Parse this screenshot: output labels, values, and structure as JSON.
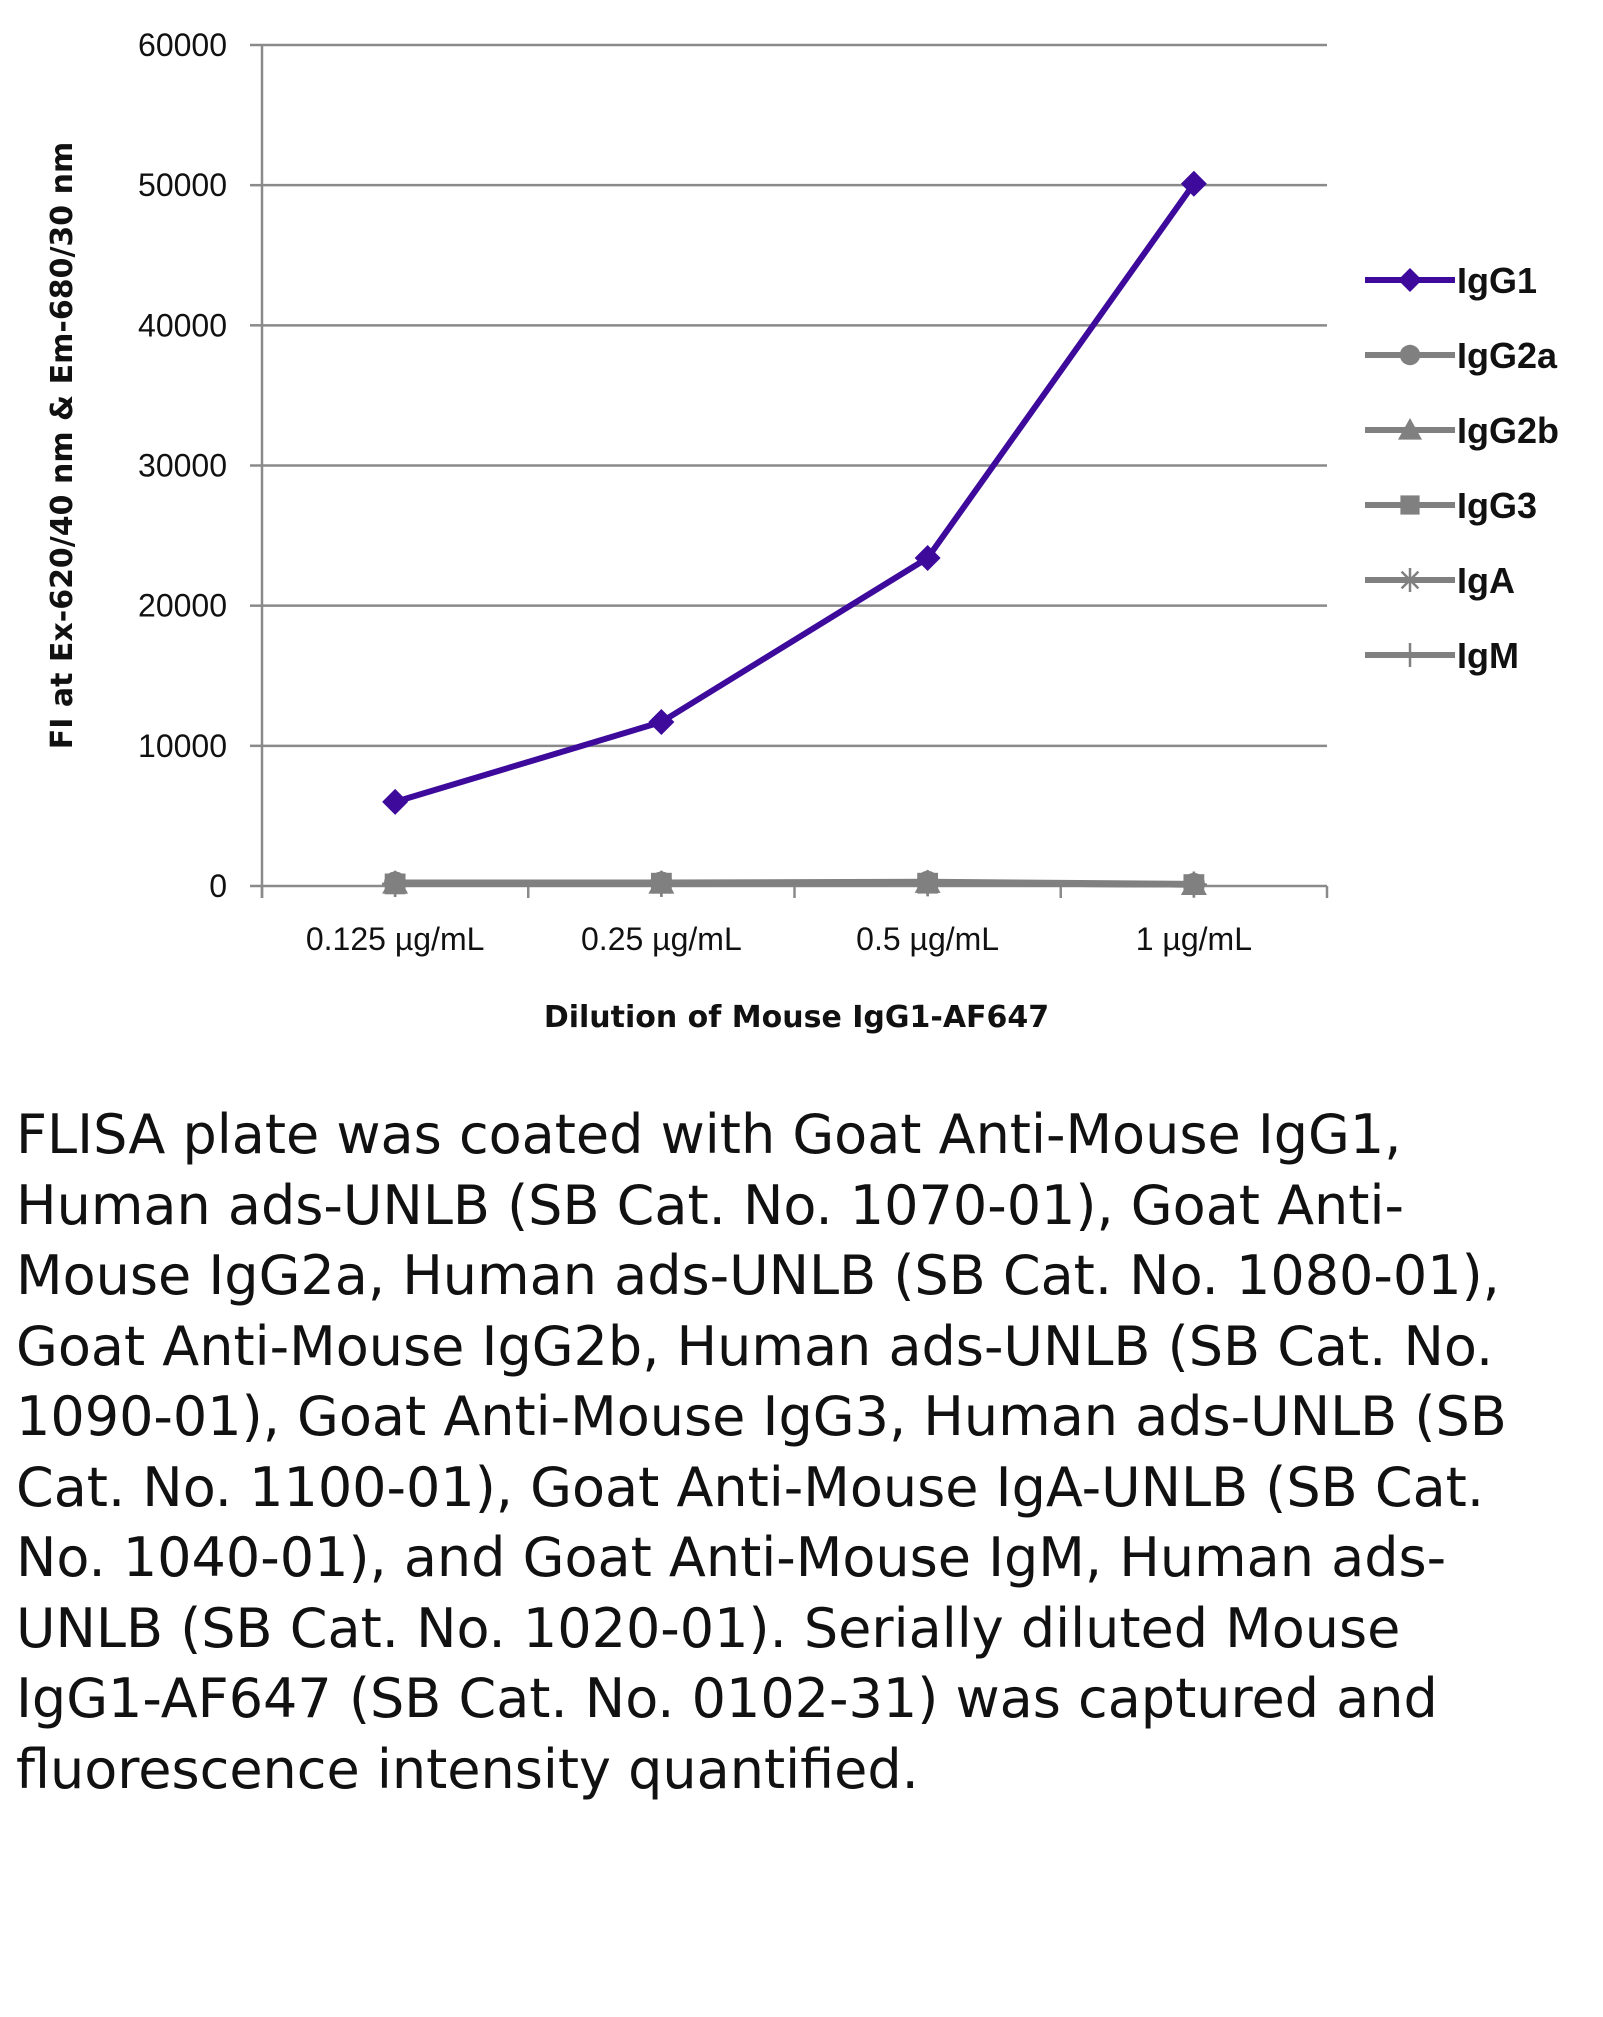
{
  "chart_data": {
    "type": "line",
    "title": "",
    "xlabel": "Dilution of Mouse IgG1-AF647",
    "ylabel": "FI at Ex-620/40 nm & Em-680/30 nm",
    "categories": [
      "0.125 µg/mL",
      "0.25 µg/mL",
      "0.5 µg/mL",
      "1 µg/mL"
    ],
    "ylim": [
      0,
      60000
    ],
    "yticks": [
      0,
      10000,
      20000,
      30000,
      40000,
      50000,
      60000
    ],
    "grid": true,
    "legend_position": "right",
    "series": [
      {
        "name": "IgG1",
        "marker": "diamond",
        "color": "#3d0a9c",
        "values": [
          6000,
          11700,
          23400,
          50100
        ]
      },
      {
        "name": "IgG2a",
        "marker": "circle",
        "color": "#808080",
        "values": [
          250,
          250,
          300,
          150
        ]
      },
      {
        "name": "IgG2b",
        "marker": "triangle",
        "color": "#808080",
        "values": [
          200,
          200,
          250,
          100
        ]
      },
      {
        "name": "IgG3",
        "marker": "square",
        "color": "#808080",
        "values": [
          150,
          200,
          200,
          100
        ]
      },
      {
        "name": "IgA",
        "marker": "asterisk",
        "color": "#808080",
        "values": [
          150,
          150,
          200,
          100
        ]
      },
      {
        "name": "IgM",
        "marker": "plus",
        "color": "#808080",
        "values": [
          150,
          150,
          200,
          100
        ]
      }
    ]
  },
  "caption": "FLISA plate was coated with Goat Anti-Mouse IgG1, Human ads-UNLB (SB Cat. No. 1070-01), Goat Anti-Mouse IgG2a, Human ads-UNLB (SB Cat. No. 1080-01), Goat Anti-Mouse IgG2b, Human ads-UNLB (SB Cat. No. 1090-01), Goat Anti-Mouse IgG3, Human ads-UNLB (SB Cat. No. 1100-01), Goat Anti-Mouse IgA-UNLB (SB Cat. No. 1040-01), and Goat Anti-Mouse IgM, Human ads-UNLB (SB Cat. No. 1020-01).  Serially diluted Mouse IgG1-AF647 (SB Cat. No. 0102-31) was captured and fluorescence intensity quantified."
}
